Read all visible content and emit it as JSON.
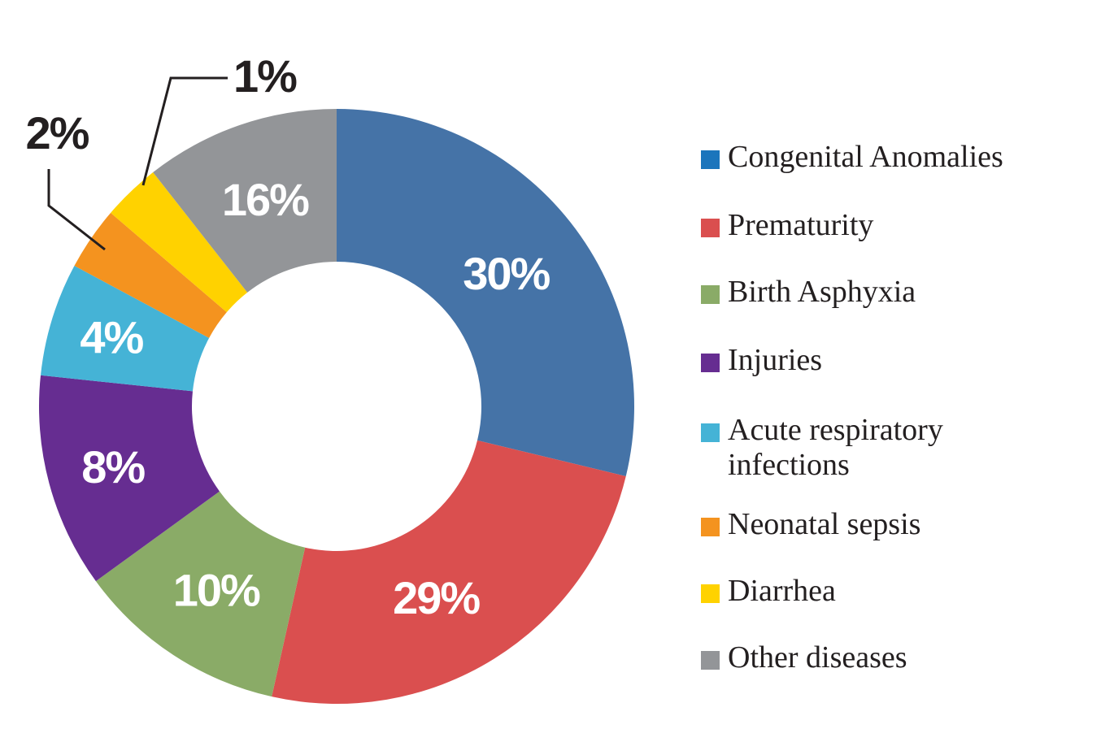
{
  "chart_data": {
    "type": "pie",
    "style": "donut",
    "title": "",
    "legend_position": "right",
    "slices": [
      {
        "label": "Congenital Anomalies",
        "value": 30,
        "display": "30%",
        "color": "#4573a7"
      },
      {
        "label": "Prematurity",
        "value": 29,
        "display": "29%",
        "color": "#da4f4f"
      },
      {
        "label": "Birth Asphyxia",
        "value": 10,
        "display": "10%",
        "color": "#8aab67"
      },
      {
        "label": "Injuries",
        "value": 8,
        "display": "8%",
        "color": "#662d91"
      },
      {
        "label": "Acute respiratory infections",
        "value": 4,
        "display": "4%",
        "color": "#45b3d6"
      },
      {
        "label": "Neonatal sepsis",
        "value": 2,
        "display": "2%",
        "color": "#f4931f"
      },
      {
        "label": "Diarrhea",
        "value": 1,
        "display": "1%",
        "color": "#ffd200"
      },
      {
        "label": "Other diseases",
        "value": 16,
        "display": "16%",
        "color": "#939598"
      }
    ],
    "legend_swatch_colors": [
      "#1b75bc",
      "#da4f4f",
      "#8aab67",
      "#662d91",
      "#45b3d6",
      "#f4931f",
      "#ffd200",
      "#939598"
    ]
  }
}
